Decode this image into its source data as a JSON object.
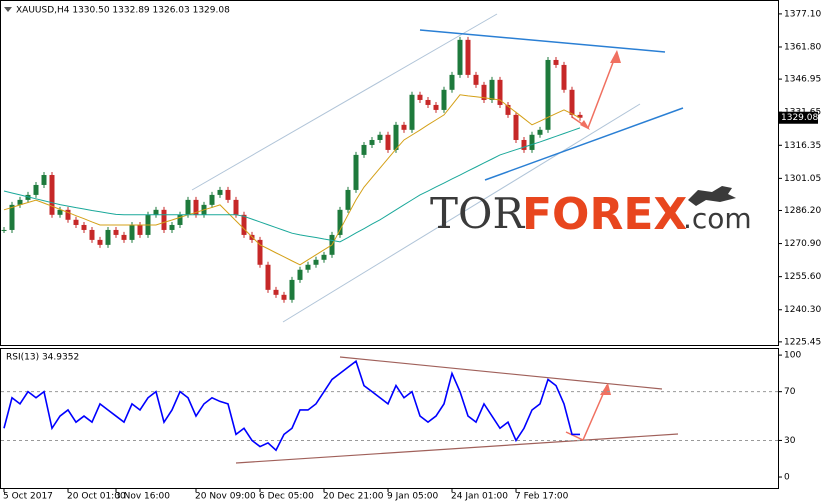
{
  "chart_data": [
    {
      "type": "candlestick",
      "title": "XAUUSD,H4  1330.50 1332.89 1326.03 1329.08",
      "ylim": [
        1224,
        1382.6
      ],
      "yticks": [
        {
          "value": 1377.1,
          "label": "1377.10"
        },
        {
          "value": 1361.8,
          "label": "1361.80"
        },
        1346.95,
        1331.65,
        1316.35,
        1301.05,
        {
          "value": 1286.2,
          "label": "1286.20"
        },
        {
          "value": 1270.9,
          "label": "1270.90"
        },
        {
          "value": 1255.6,
          "label": "1255.60"
        },
        {
          "value": 1240.3,
          "label": "1240.30"
        },
        1225.45
      ],
      "price_marker": {
        "value": 1329.08,
        "label": "1329.08"
      },
      "grid": false,
      "series": [
        {
          "type": "candlestick",
          "up_color": "#1e7a3c",
          "down_color": "#c62828",
          "values": [
            1277.2,
            1288.8,
            1291.1,
            1293.4,
            1298.0,
            1302.6,
            1284.2,
            1286.5,
            1281.9,
            1279.5,
            1277.2,
            1272.6,
            1270.3,
            1277.2,
            1274.9,
            1272.6,
            1279.5,
            1274.9,
            1284.2,
            1286.5,
            1277.2,
            1279.5,
            1284.2,
            1291.1,
            1284.2,
            1288.8,
            1293.4,
            1295.7,
            1291.1,
            1284.2,
            1274.9,
            1272.6,
            1261.1,
            1249.5,
            1247.2,
            1244.9,
            1254.1,
            1258.8,
            1261.1,
            1263.4,
            1265.7,
            1274.9,
            1286.5,
            1295.7,
            1311.9,
            1316.5,
            1318.8,
            1321.2,
            1314.2,
            1325.8,
            1323.5,
            1339.7,
            1337.3,
            1335.0,
            1332.7,
            1342.0,
            1348.9,
            1365.1,
            1348.9,
            1344.3,
            1337.3,
            1346.6,
            1335.0,
            1330.4,
            1318.8,
            1314.2,
            1321.2,
            1323.5,
            1355.8,
            1353.5,
            1342.0,
            1330.4,
            1329.08
          ]
        },
        {
          "type": "line",
          "color": "#d4a017",
          "values": [
            1286.5,
            1287.6,
            1288.8,
            1289.9,
            1291.0,
            1289.6,
            1288.2,
            1286.7,
            1285.3,
            1283.8,
            1282.4,
            1280.9,
            1279.5,
            1279.5,
            1279.5,
            1279.5,
            1279.5,
            1279.5,
            1279.5,
            1279.5,
            1280.7,
            1281.8,
            1283.0,
            1284.2,
            1285.3,
            1286.5,
            1287.6,
            1288.8,
            1285.1,
            1281.4,
            1277.7,
            1274.0,
            1270.3,
            1268.5,
            1266.6,
            1264.8,
            1262.9,
            1261.1,
            1263.4,
            1265.7,
            1268.0,
            1270.3,
            1277.2,
            1284.2,
            1291.1,
            1297.0,
            1301.4,
            1305.8,
            1310.2,
            1314.6,
            1318.8,
            1321.1,
            1323.4,
            1325.8,
            1328.1,
            1330.4,
            1335.0,
            1339.7,
            1339.2,
            1338.8,
            1338.3,
            1337.8,
            1337.3,
            1334.4,
            1331.6,
            1328.7,
            1325.8,
            1327.5,
            1329.3,
            1331.0,
            1332.7,
            1330.9,
            1329.0
          ]
        },
        {
          "type": "line",
          "color": "#1aa89a",
          "values": [
            1295.2,
            1294.3,
            1293.4,
            1292.5,
            1291.6,
            1290.7,
            1289.8,
            1288.9,
            1288.2,
            1287.5,
            1286.9,
            1286.2,
            1285.6,
            1285.0,
            1284.4,
            1284.2,
            1284.2,
            1284.2,
            1284.2,
            1284.2,
            1284.2,
            1284.2,
            1284.2,
            1284.2,
            1284.2,
            1284.2,
            1284.2,
            1284.2,
            1284.2,
            1284.2,
            1283.5,
            1282.2,
            1280.9,
            1279.6,
            1278.3,
            1277.0,
            1275.7,
            1274.9,
            1274.3,
            1273.7,
            1273.0,
            1272.4,
            1271.7,
            1273.7,
            1275.8,
            1277.8,
            1279.9,
            1281.9,
            1284.2,
            1286.5,
            1288.8,
            1291.1,
            1293.4,
            1295.2,
            1297.1,
            1298.9,
            1300.8,
            1302.6,
            1304.5,
            1306.3,
            1308.2,
            1310.0,
            1311.9,
            1313.1,
            1314.3,
            1315.5,
            1316.7,
            1317.9,
            1319.2,
            1320.5,
            1321.8,
            1323.1,
            1324.4
          ]
        }
      ],
      "watermark": {
        "part1": "TOR",
        "part2": "FOREX",
        "part3": ".com"
      }
    },
    {
      "type": "line",
      "title": "RSI(13) 34.9352",
      "ylim": [
        -9,
        105
      ],
      "yticks": [
        100,
        70,
        30,
        0
      ],
      "levels": [
        70,
        30
      ],
      "categories": [
        "5 Oct 2017",
        null,
        null,
        null,
        null,
        null,
        null,
        null,
        "20 Oct 01:00",
        null,
        null,
        null,
        null,
        null,
        "3 Nov 16:00",
        null,
        null,
        null,
        null,
        null,
        null,
        null,
        null,
        null,
        "20 Nov 09:00",
        null,
        null,
        null,
        null,
        null,
        null,
        null,
        "6 Dec 05:00",
        null,
        null,
        null,
        null,
        null,
        null,
        null,
        "20 Dec 21:00",
        null,
        null,
        null,
        null,
        null,
        null,
        null,
        "9 Jan 05:00",
        null,
        null,
        null,
        null,
        null,
        null,
        null,
        "24 Jan 01:00",
        null,
        null,
        null,
        null,
        null,
        null,
        null,
        "7 Feb 17:00",
        null,
        null,
        null,
        null,
        null,
        null,
        null,
        null
      ],
      "series": [
        {
          "color": "#0000ff",
          "values": [
            40,
            65,
            60,
            70,
            65,
            70,
            40,
            50,
            55,
            45,
            50,
            45,
            60,
            55,
            50,
            45,
            60,
            55,
            65,
            70,
            45,
            55,
            70,
            65,
            50,
            60,
            65,
            62,
            60,
            35,
            40,
            30,
            25,
            28,
            22,
            35,
            40,
            55,
            55,
            60,
            70,
            80,
            85,
            90,
            95,
            75,
            70,
            65,
            60,
            75,
            65,
            70,
            50,
            45,
            50,
            60,
            85,
            70,
            50,
            45,
            60,
            50,
            40,
            45,
            30,
            40,
            55,
            60,
            80,
            75,
            60,
            35,
            34.9
          ]
        }
      ]
    }
  ]
}
